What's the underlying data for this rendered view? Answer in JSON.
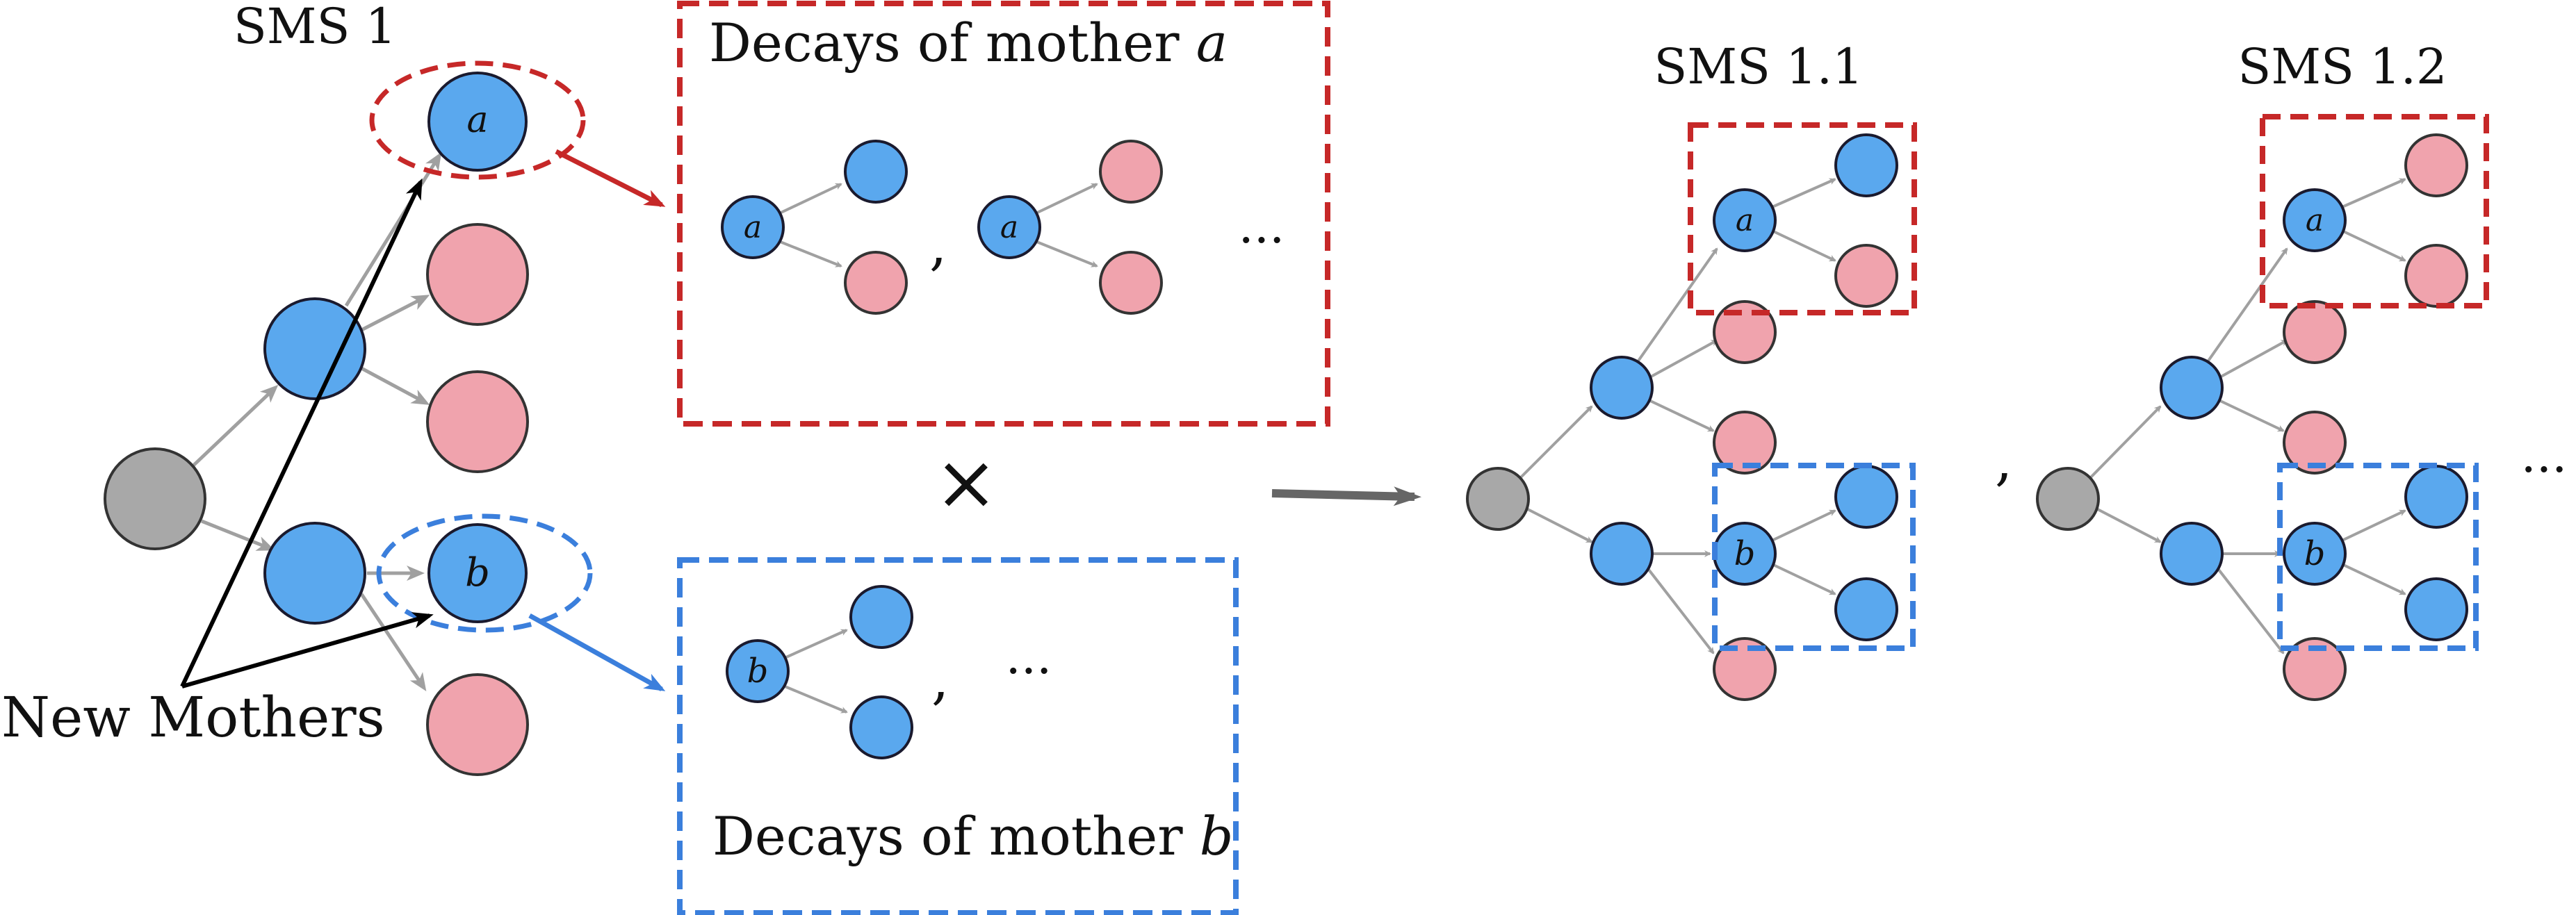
{
  "labels": {
    "sms1": "SMS 1",
    "sms11": "SMS 1.1",
    "sms12": "SMS 1.2",
    "decays_a_prefix": "Decays of mother ",
    "decays_b_prefix": "Decays of mother ",
    "new_mothers": "New Mothers",
    "times": "×",
    "comma": ",",
    "ellipsis": "···",
    "mother_a": "a",
    "mother_b": "b"
  },
  "colors": {
    "blue_node": "#5aa8ee",
    "pink_node": "#f0a3ad",
    "gray_node": "#a8a8a8",
    "red_box": "#c62828",
    "blue_box": "#3b7fdc",
    "edge": "#a0a0a0"
  }
}
